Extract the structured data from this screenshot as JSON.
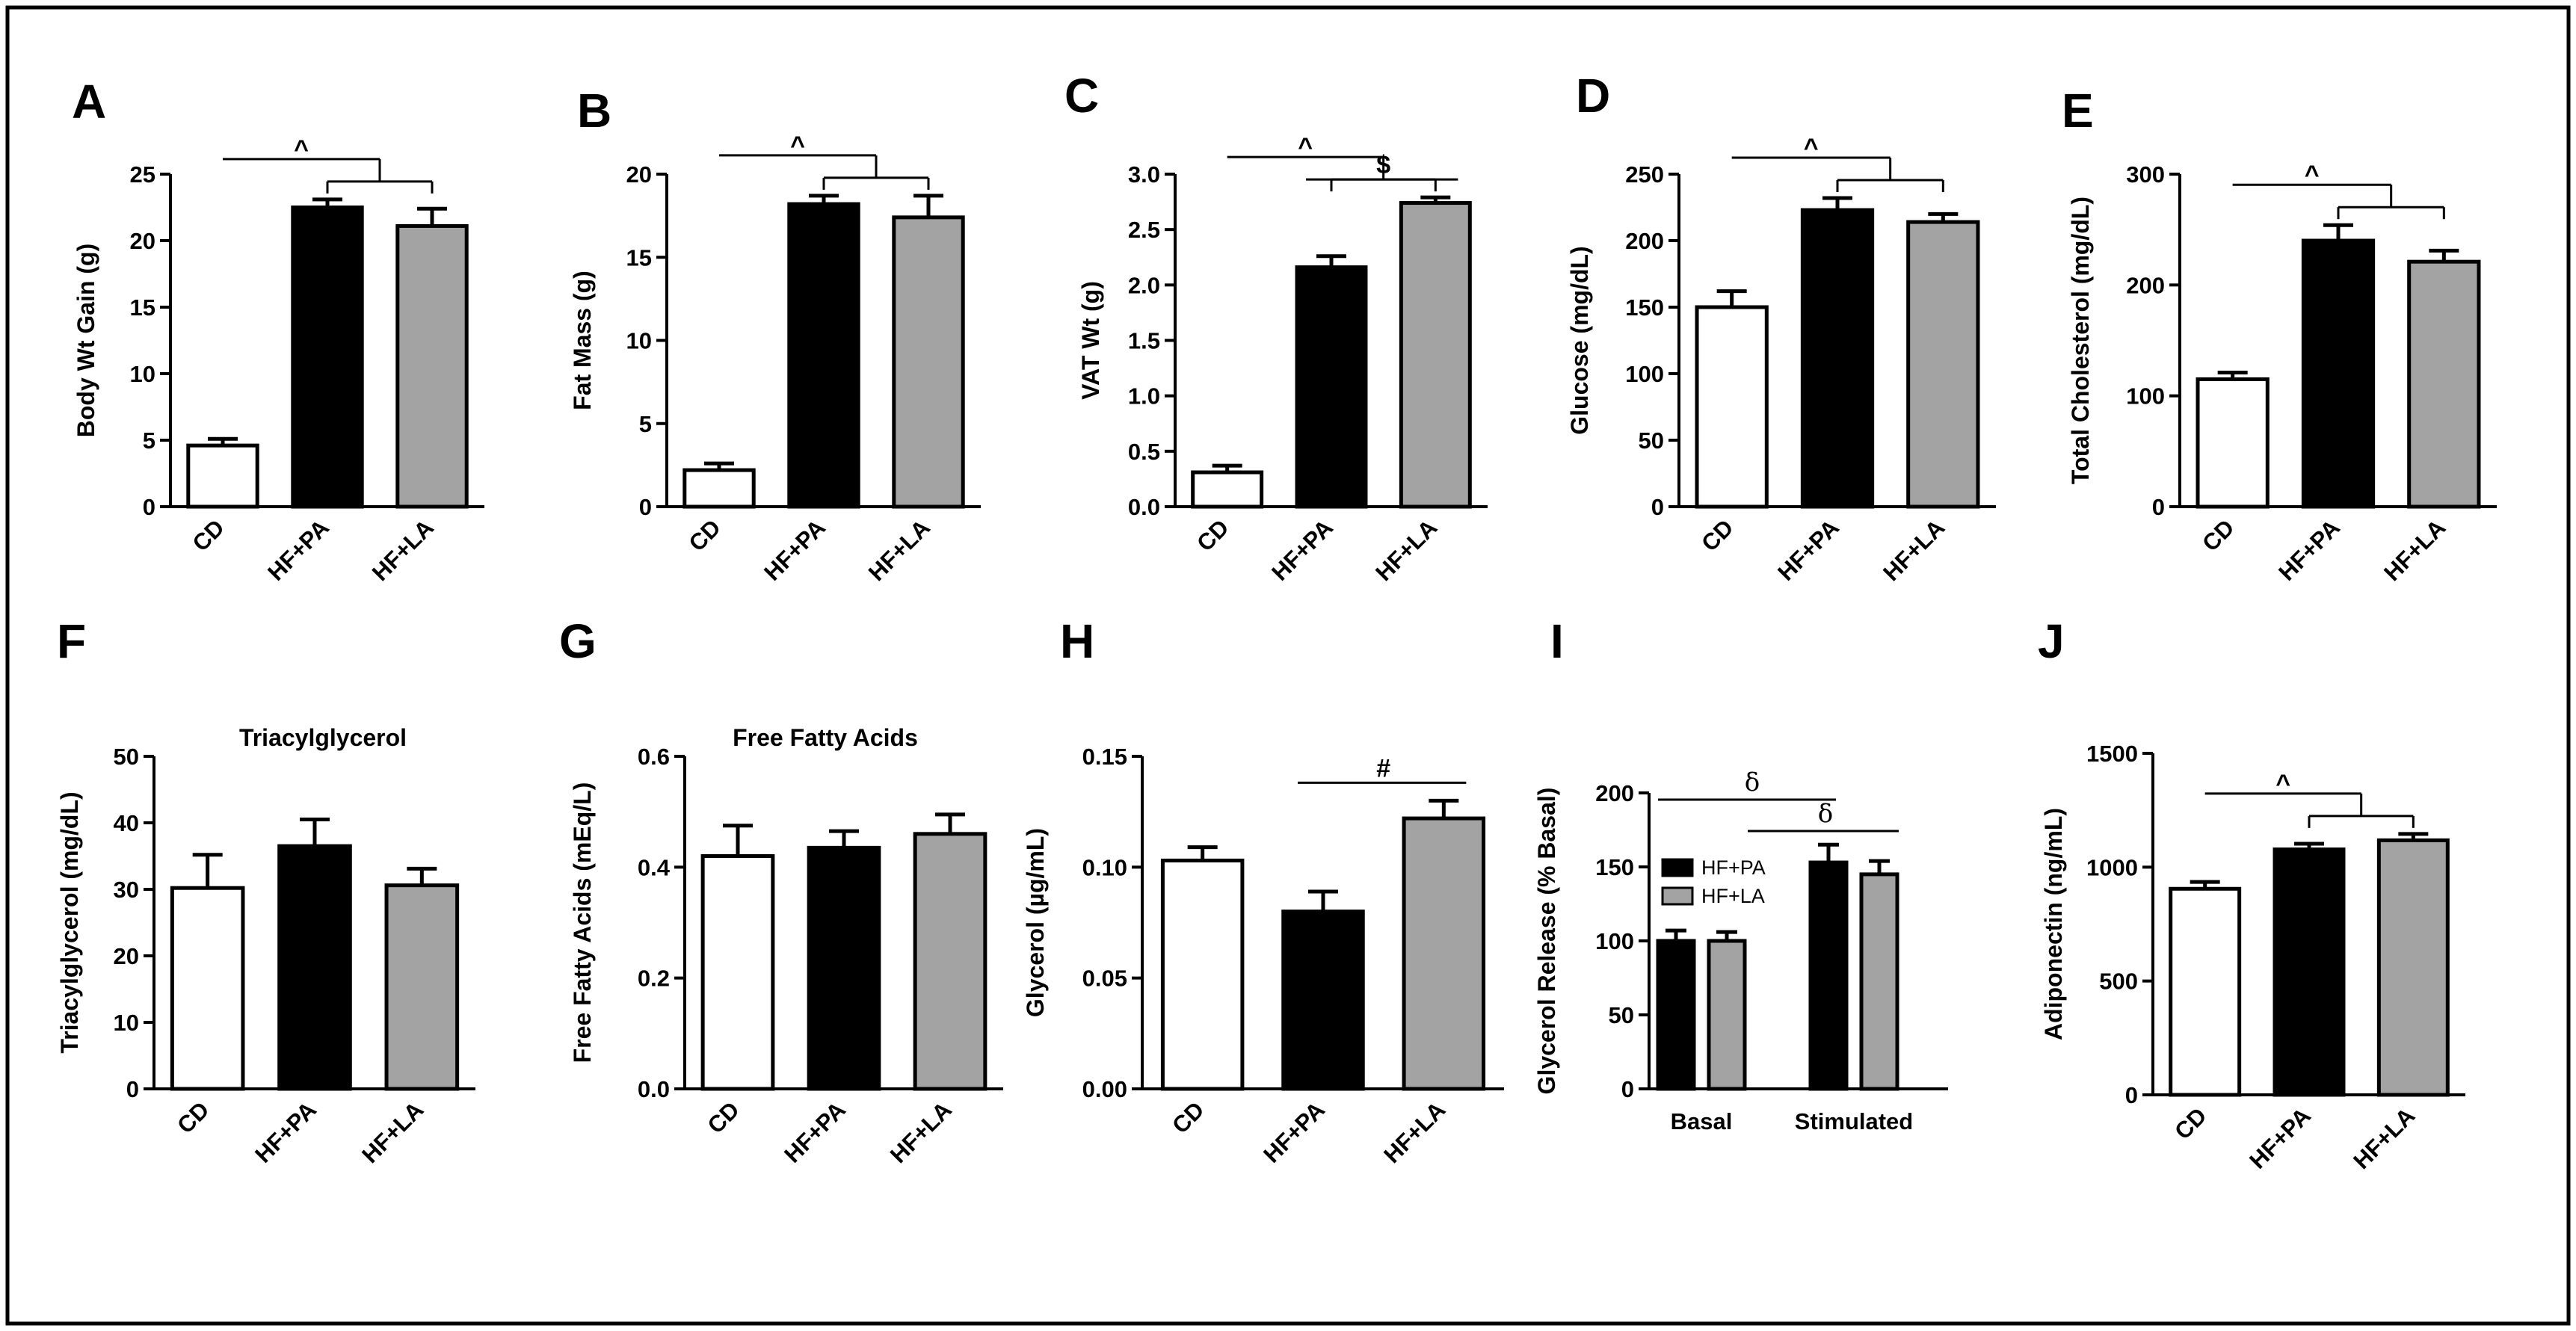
{
  "colors": {
    "CD": "#ffffff",
    "HF+PA": "#000000",
    "HF+LA": "#a3a3a3",
    "stroke": "#000000"
  },
  "chart_data": [
    {
      "id": "A",
      "type": "bar",
      "title": "",
      "ylabel": "Body  Wt Gain (g)",
      "ylim": [
        0,
        25
      ],
      "yticks": [
        "0",
        "5",
        "10",
        "15",
        "20",
        "25"
      ],
      "ytick_values": [
        0,
        5,
        10,
        15,
        20,
        25
      ],
      "categories": [
        "CD",
        "HF+PA",
        "HF+LA"
      ],
      "values": [
        4.6,
        22.5,
        21.1
      ],
      "errors": [
        0.5,
        0.6,
        1.3
      ],
      "annotations": [
        {
          "symbol": "^",
          "type": "group",
          "from": 0,
          "to": [
            1,
            2
          ]
        }
      ]
    },
    {
      "id": "B",
      "type": "bar",
      "title": "",
      "ylabel": "Fat Mass (g)",
      "ylim": [
        0,
        20
      ],
      "yticks": [
        "0",
        "5",
        "10",
        "15",
        "20"
      ],
      "ytick_values": [
        0,
        5,
        10,
        15,
        20
      ],
      "categories": [
        "CD",
        "HF+PA",
        "HF+LA"
      ],
      "values": [
        2.2,
        18.2,
        17.4
      ],
      "errors": [
        0.4,
        0.5,
        1.3
      ],
      "annotations": [
        {
          "symbol": "^",
          "type": "group",
          "from": 0,
          "to": [
            1,
            2
          ]
        }
      ]
    },
    {
      "id": "C",
      "type": "bar",
      "title": "",
      "ylabel": "VAT Wt (g)",
      "ylim": [
        0,
        3.0
      ],
      "yticks": [
        "0.0",
        "0.5",
        "1.0",
        "1.5",
        "2.0",
        "2.5",
        "3.0"
      ],
      "ytick_values": [
        0,
        0.5,
        1.0,
        1.5,
        2.0,
        2.5,
        3.0
      ],
      "categories": [
        "CD",
        "HF+PA",
        "HF+LA"
      ],
      "values": [
        0.31,
        2.16,
        2.74
      ],
      "errors": [
        0.06,
        0.1,
        0.05
      ],
      "annotations": [
        {
          "symbol": "^",
          "type": "group",
          "from": 0,
          "to": [
            1,
            2
          ]
        },
        {
          "symbol": "$",
          "type": "pair",
          "from": 1,
          "to": 2
        }
      ]
    },
    {
      "id": "D",
      "type": "bar",
      "title": "",
      "ylabel": "Glucose (mg/dL)",
      "ylim": [
        0,
        250
      ],
      "yticks": [
        "0",
        "50",
        "100",
        "150",
        "200",
        "250"
      ],
      "ytick_values": [
        0,
        50,
        100,
        150,
        200,
        250
      ],
      "categories": [
        "CD",
        "HF+PA",
        "HF+LA"
      ],
      "values": [
        150,
        223,
        214
      ],
      "errors": [
        12,
        9,
        6
      ],
      "annotations": [
        {
          "symbol": "^",
          "type": "group",
          "from": 0,
          "to": [
            1,
            2
          ]
        }
      ]
    },
    {
      "id": "E",
      "type": "bar",
      "title": "",
      "ylabel": "Total Cholesterol (mg/dL)",
      "ylim": [
        0,
        300
      ],
      "yticks": [
        "0",
        "100",
        "200",
        "300"
      ],
      "ytick_values": [
        0,
        100,
        200,
        300
      ],
      "categories": [
        "CD",
        "HF+PA",
        "HF+LA"
      ],
      "values": [
        115,
        240,
        221
      ],
      "errors": [
        6,
        14,
        10
      ],
      "annotations": [
        {
          "symbol": "^",
          "type": "group",
          "from": 0,
          "to": [
            1,
            2
          ]
        }
      ]
    },
    {
      "id": "F",
      "type": "bar",
      "title": "Triacylglycerol",
      "ylabel": "Triacylglycerol (mg/dL)",
      "ylim": [
        0,
        50
      ],
      "yticks": [
        "0",
        "10",
        "20",
        "30",
        "40",
        "50"
      ],
      "ytick_values": [
        0,
        10,
        20,
        30,
        40,
        50
      ],
      "categories": [
        "CD",
        "HF+PA",
        "HF+LA"
      ],
      "values": [
        30.2,
        36.5,
        30.6
      ],
      "errors": [
        5.0,
        4.0,
        2.5
      ],
      "annotations": []
    },
    {
      "id": "G",
      "type": "bar",
      "title": "Free Fatty Acids",
      "ylabel": "Free Fatty Acids (mEq/L)",
      "ylim": [
        0,
        0.6
      ],
      "yticks": [
        "0.0",
        "0.2",
        "0.4",
        "0.6"
      ],
      "ytick_values": [
        0,
        0.2,
        0.4,
        0.6
      ],
      "categories": [
        "CD",
        "HF+PA",
        "HF+LA"
      ],
      "values": [
        0.42,
        0.435,
        0.46
      ],
      "errors": [
        0.055,
        0.03,
        0.035
      ],
      "annotations": []
    },
    {
      "id": "H",
      "type": "bar",
      "title": "",
      "ylabel": "Glycerol (µg/mL)",
      "ylim": [
        0,
        0.15
      ],
      "yticks": [
        "0.00",
        "0.05",
        "0.10",
        "0.15"
      ],
      "ytick_values": [
        0,
        0.05,
        0.1,
        0.15
      ],
      "categories": [
        "CD",
        "HF+PA",
        "HF+LA"
      ],
      "values": [
        0.103,
        0.08,
        0.122
      ],
      "errors": [
        0.006,
        0.009,
        0.008
      ],
      "annotations": [
        {
          "symbol": "#",
          "type": "pair",
          "from": 1,
          "to": 2
        }
      ]
    },
    {
      "id": "I",
      "type": "grouped-bar",
      "title": "",
      "ylabel": "Glycerol Release (% Basal)",
      "ylim": [
        0,
        200
      ],
      "yticks": [
        "0",
        "50",
        "100",
        "150",
        "200"
      ],
      "ytick_values": [
        0,
        50,
        100,
        150,
        200
      ],
      "categories": [
        "Basal",
        "Stimulated"
      ],
      "series": [
        {
          "name": "HF+PA",
          "values": [
            100,
            153
          ],
          "errors": [
            7,
            12
          ]
        },
        {
          "name": "HF+LA",
          "values": [
            100,
            145
          ],
          "errors": [
            6,
            9
          ]
        }
      ],
      "legend": [
        "HF+PA",
        "HF+LA"
      ],
      "annotations": [
        {
          "symbol": "δ",
          "from": "Basal/HF+PA",
          "to": "Stimulated/HF+PA"
        },
        {
          "symbol": "δ",
          "from": "Basal/HF+LA",
          "to": "Stimulated/HF+LA"
        }
      ]
    },
    {
      "id": "J",
      "type": "bar",
      "title": "",
      "ylabel": "Adiponectin (ng/mL)",
      "ylim": [
        0,
        1500
      ],
      "yticks": [
        "0",
        "500",
        "1000",
        "1500"
      ],
      "ytick_values": [
        0,
        500,
        1000,
        1500
      ],
      "categories": [
        "CD",
        "HF+PA",
        "HF+LA"
      ],
      "values": [
        905,
        1078,
        1118
      ],
      "errors": [
        30,
        25,
        28
      ],
      "annotations": [
        {
          "symbol": "^",
          "type": "group",
          "from": 0,
          "to": [
            1,
            2
          ]
        }
      ]
    }
  ]
}
